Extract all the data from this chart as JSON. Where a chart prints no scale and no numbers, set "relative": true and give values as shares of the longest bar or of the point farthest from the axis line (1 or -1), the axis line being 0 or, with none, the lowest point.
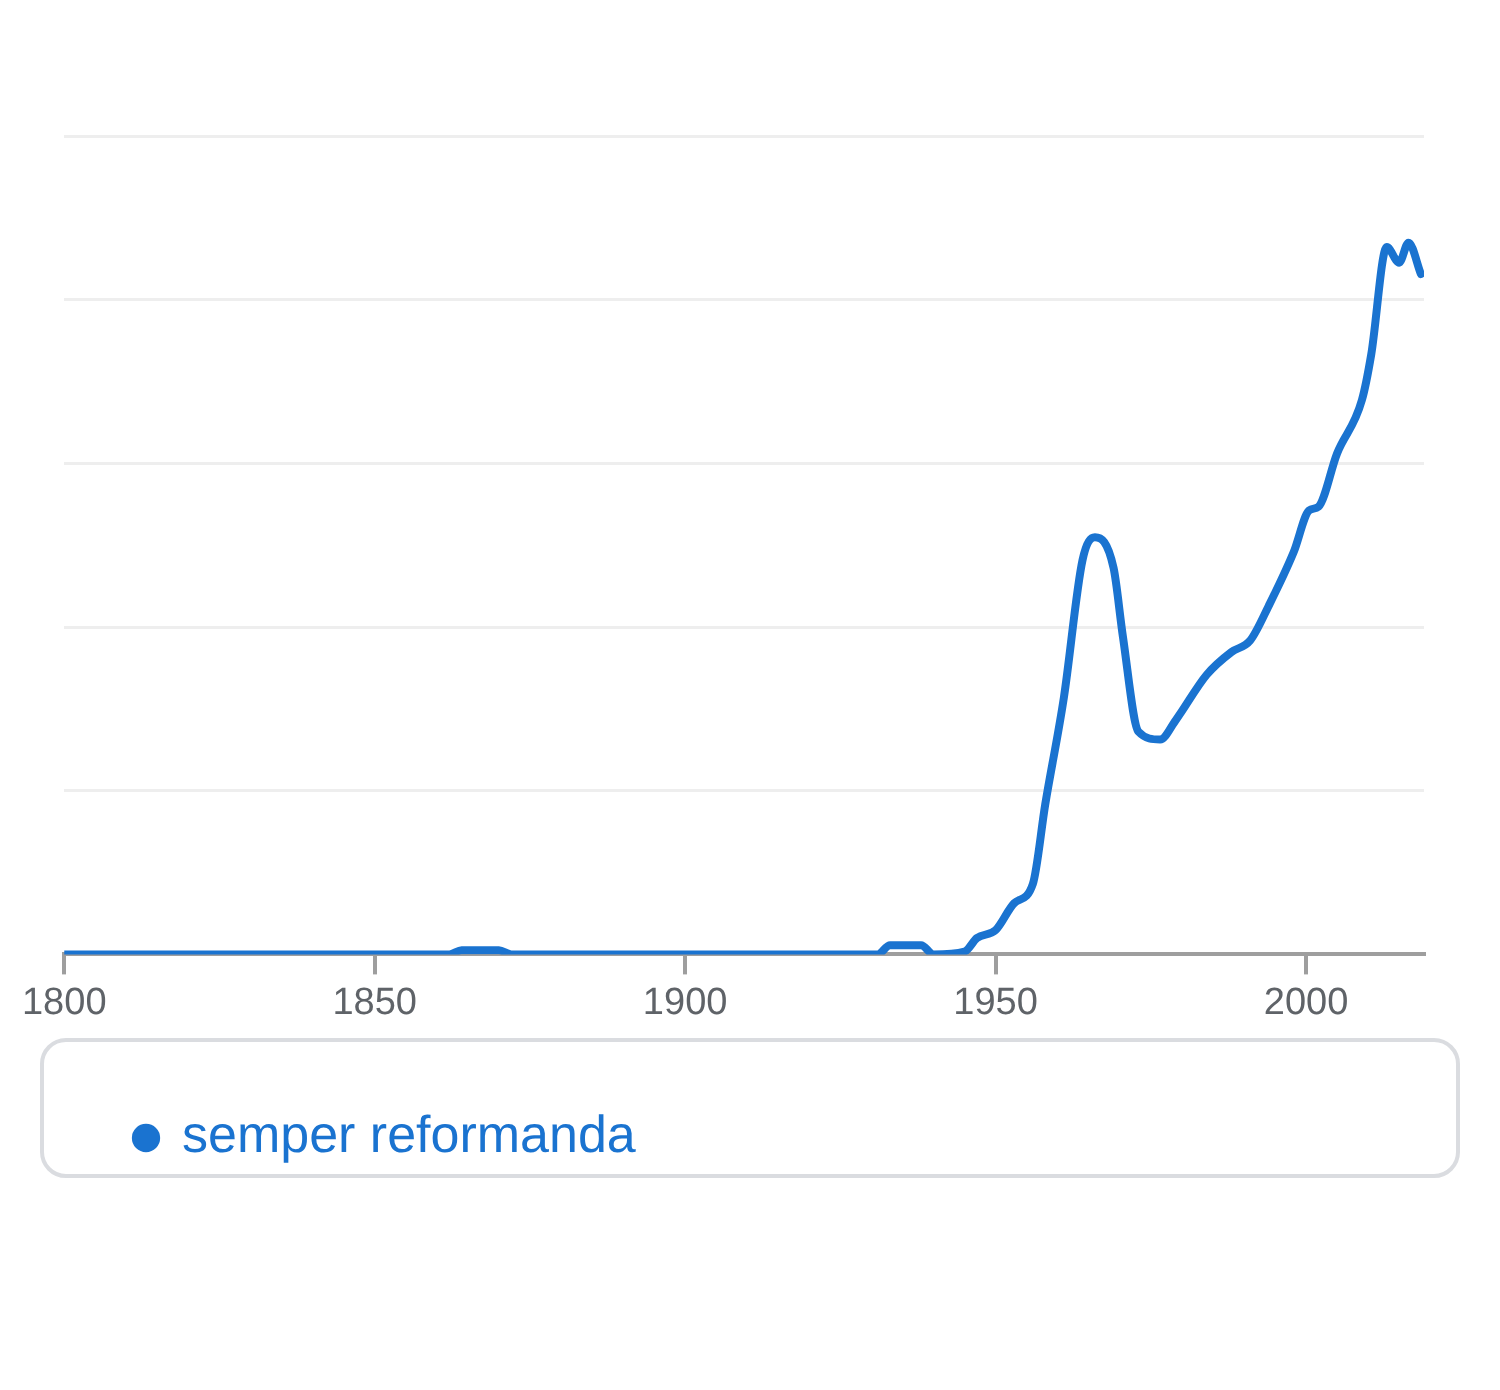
{
  "chart_data": {
    "type": "line",
    "relative": true,
    "xlim": [
      1800,
      2019
    ],
    "xticks": [
      1800,
      1850,
      1900,
      1950,
      2000
    ],
    "grid": "y",
    "legend": "bottom",
    "marker": "none",
    "line_style": "solid",
    "series": [
      {
        "name": "semper reformanda",
        "color": "#1a73d0",
        "x": [
          1800,
          1862,
          1864,
          1870,
          1872,
          1931,
          1933,
          1938,
          1940,
          1945,
          1947,
          1950,
          1953,
          1956,
          1958,
          1961,
          1964,
          1966,
          1969,
          1970.5,
          1973,
          1976.5,
          1979,
          1984,
          1988,
          1991,
          1994,
          1998,
          2000.5,
          2002,
          2005,
          2009,
          2010.5,
          2013,
          2015,
          2016.5,
          2018.5
        ],
        "values": [
          0,
          0,
          0.006,
          0.006,
          0,
          0,
          0.013,
          0.013,
          0,
          0.004,
          0.023,
          0.034,
          0.072,
          0.099,
          0.211,
          0.361,
          0.554,
          0.586,
          0.543,
          0.447,
          0.313,
          0.302,
          0.329,
          0.393,
          0.425,
          0.441,
          0.49,
          0.565,
          0.624,
          0.629,
          0.704,
          0.779,
          0.843,
          0.994,
          0.972,
          1,
          0.956
        ]
      }
    ]
  }
}
